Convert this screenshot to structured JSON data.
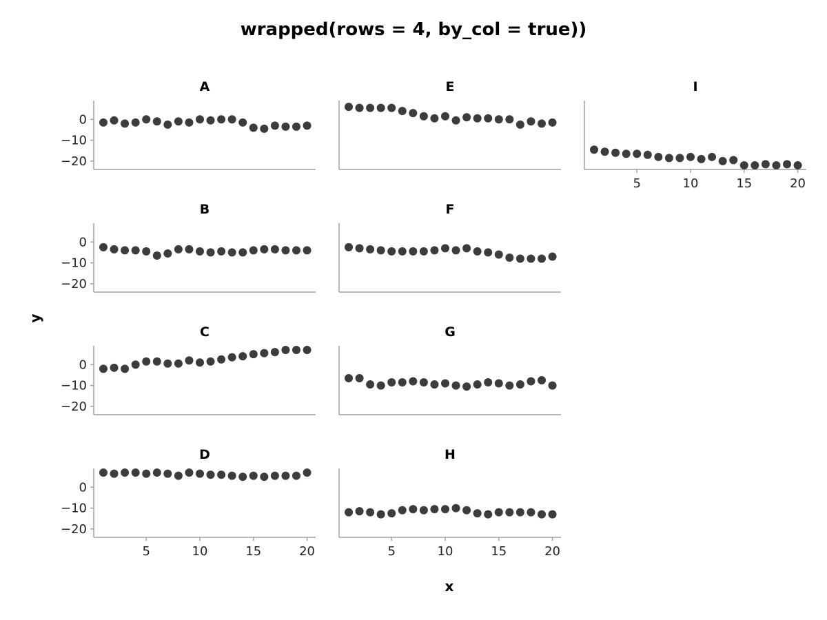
{
  "chart_data": {
    "type": "scatter",
    "title": "wrapped(rows = 4, by_col = true))",
    "xlabel": "x",
    "ylabel": "y",
    "xlim": [
      0.1,
      20.8
    ],
    "ylim": [
      -24,
      9
    ],
    "x_ticks": [
      5,
      10,
      15,
      20
    ],
    "y_ticks": [
      0,
      -10,
      -20
    ],
    "grid": false,
    "point_color": "#3c3c3c",
    "axis_color": "#a0a0a0",
    "x": [
      1,
      2,
      3,
      4,
      5,
      6,
      7,
      8,
      9,
      10,
      11,
      12,
      13,
      14,
      15,
      16,
      17,
      18,
      19,
      20
    ],
    "panels": [
      {
        "name": "A",
        "values": [
          -1.5,
          -0.5,
          -2,
          -1.5,
          0,
          -1,
          -2.5,
          -1,
          -1.5,
          0,
          -0.5,
          0,
          0,
          -1.5,
          -4,
          -4.5,
          -3,
          -3.5,
          -3.5,
          -3
        ]
      },
      {
        "name": "B",
        "values": [
          -2.5,
          -3.5,
          -4,
          -4,
          -4.5,
          -6.5,
          -5.5,
          -3.5,
          -3.5,
          -4.5,
          -5,
          -4.5,
          -5,
          -5,
          -4,
          -3.5,
          -3.5,
          -4,
          -4,
          -4
        ]
      },
      {
        "name": "C",
        "values": [
          -2,
          -1.5,
          -2,
          0,
          1.5,
          1.5,
          0.5,
          0.5,
          2,
          1,
          1.5,
          2.5,
          3.5,
          4,
          5,
          5.5,
          6,
          7,
          7,
          7
        ]
      },
      {
        "name": "D",
        "values": [
          7,
          6.5,
          7,
          7,
          6.5,
          7,
          6.5,
          5.5,
          7,
          6.5,
          6,
          6,
          5.5,
          5,
          5.5,
          5,
          5.5,
          5.5,
          5.5,
          7
        ]
      },
      {
        "name": "E",
        "values": [
          6,
          5.5,
          5.5,
          5.5,
          5.5,
          4,
          3,
          1.5,
          0.5,
          1.5,
          -0.5,
          1,
          0.5,
          0.5,
          0,
          0,
          -2.5,
          -1,
          -2,
          -1.5
        ]
      },
      {
        "name": "F",
        "values": [
          -2.5,
          -3,
          -3.5,
          -4,
          -4.5,
          -4.5,
          -4.5,
          -4.5,
          -4,
          -3,
          -4,
          -3,
          -4.5,
          -5,
          -6,
          -7.5,
          -8,
          -8,
          -8,
          -7
        ]
      },
      {
        "name": "G",
        "values": [
          -6.5,
          -6.5,
          -9.5,
          -10,
          -8.5,
          -8.5,
          -8,
          -8.5,
          -9.5,
          -9,
          -10,
          -10.5,
          -9.5,
          -8.5,
          -9,
          -10,
          -9.5,
          -8,
          -7.5,
          -10
        ]
      },
      {
        "name": "H",
        "values": [
          -12,
          -11.5,
          -12,
          -13,
          -12.5,
          -11,
          -10.5,
          -11,
          -10.5,
          -10.5,
          -10,
          -11,
          -12.5,
          -13,
          -12,
          -12,
          -12,
          -12,
          -13,
          -13
        ]
      },
      {
        "name": "I",
        "values": [
          -14.5,
          -15.5,
          -16,
          -16.5,
          -16.5,
          -17,
          -18,
          -18.5,
          -18.5,
          -18,
          -19,
          -18,
          -20,
          -19.5,
          -22,
          -22,
          -21.5,
          -22,
          -21.5,
          -22
        ]
      }
    ]
  }
}
